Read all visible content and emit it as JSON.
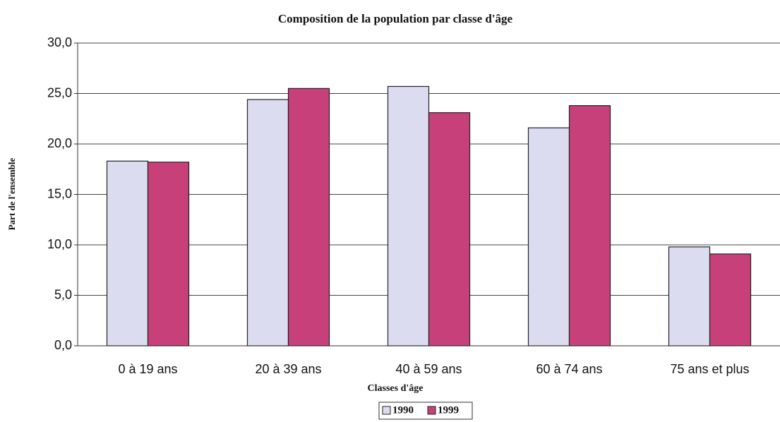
{
  "chart_data": {
    "type": "bar",
    "title": "Composition de la population par classe d'âge",
    "x_label": "Classes d'âge",
    "y_label": "Part de l'ensemble",
    "categories": [
      "0 à 19 ans",
      "20 à 39 ans",
      "40 à 59 ans",
      "60 à 74 ans",
      "75 ans et plus"
    ],
    "series": [
      {
        "name": "1990",
        "color": "#dcdcf0",
        "values": [
          18.3,
          24.4,
          25.7,
          21.6,
          9.8
        ]
      },
      {
        "name": "1999",
        "color": "#c8407a",
        "values": [
          18.2,
          25.5,
          23.1,
          23.8,
          9.1
        ]
      }
    ],
    "ylim": [
      0,
      30
    ],
    "yticks": [
      {
        "value": 0,
        "label": "0,0"
      },
      {
        "value": 5,
        "label": "5,0"
      },
      {
        "value": 10,
        "label": "10,0"
      },
      {
        "value": 15,
        "label": "15,0"
      },
      {
        "value": 20,
        "label": "20,0"
      },
      {
        "value": 25,
        "label": "25,0"
      },
      {
        "value": 30,
        "label": "30,0"
      }
    ],
    "grid": true,
    "legend": "bottom"
  }
}
